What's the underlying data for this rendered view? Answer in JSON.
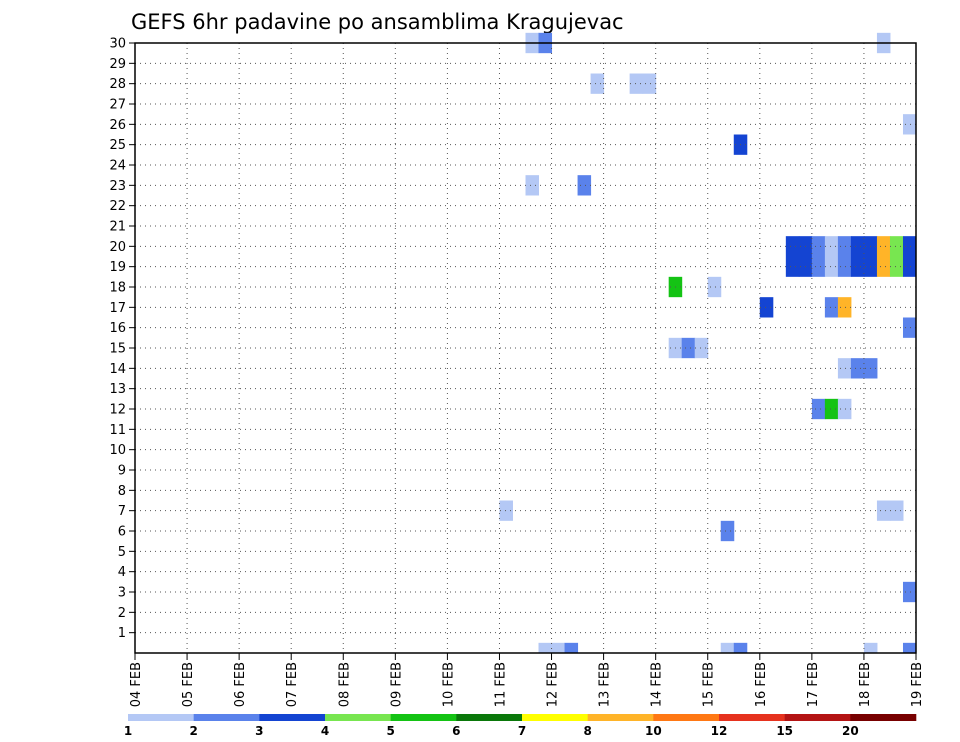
{
  "chart_data": {
    "type": "heatmap",
    "title": "GEFS 6hr padavine po ansamblima Kragujevac",
    "xlabel": "",
    "ylabel": "",
    "x_ticks": [
      "04 FEB",
      "05 FEB",
      "06 FEB",
      "07 FEB",
      "08 FEB",
      "09 FEB",
      "10 FEB",
      "11 FEB",
      "12 FEB",
      "13 FEB",
      "14 FEB",
      "15 FEB",
      "16 FEB",
      "17 FEB",
      "18 FEB",
      "19 FEB"
    ],
    "x_range": [
      0,
      60
    ],
    "y_ticks": [
      1,
      2,
      3,
      4,
      5,
      6,
      7,
      8,
      9,
      10,
      11,
      12,
      13,
      14,
      15,
      16,
      17,
      18,
      19,
      20,
      21,
      22,
      23,
      24,
      25,
      26,
      27,
      28,
      29,
      30
    ],
    "y_range": [
      0,
      30
    ],
    "grid": true,
    "colorbar": {
      "labels": [
        "1",
        "2",
        "3",
        "4",
        "5",
        "6",
        "7",
        "8",
        "10",
        "12",
        "15",
        "20"
      ],
      "colors": [
        "#b4c8f5",
        "#5a82eb",
        "#1444d2",
        "#78e650",
        "#14c314",
        "#0a780a",
        "#ffff00",
        "#ffb428",
        "#ff7814",
        "#e6321e",
        "#b41414",
        "#780000"
      ]
    },
    "cells": [
      {
        "member": 30,
        "step": 30,
        "level": 1
      },
      {
        "member": 30,
        "step": 31,
        "level": 2
      },
      {
        "member": 30,
        "step": 57,
        "level": 1
      },
      {
        "member": 28,
        "step": 35,
        "level": 1
      },
      {
        "member": 28,
        "step": 38,
        "level": 1
      },
      {
        "member": 28,
        "step": 39,
        "level": 1
      },
      {
        "member": 26,
        "step": 59,
        "level": 1
      },
      {
        "member": 25,
        "step": 46,
        "level": 3
      },
      {
        "member": 23,
        "step": 30,
        "level": 1
      },
      {
        "member": 23,
        "step": 34,
        "level": 2
      },
      {
        "member": 20,
        "step": 50,
        "level": 3
      },
      {
        "member": 20,
        "step": 51,
        "level": 3
      },
      {
        "member": 20,
        "step": 52,
        "level": 2
      },
      {
        "member": 20,
        "step": 53,
        "level": 1
      },
      {
        "member": 20,
        "step": 54,
        "level": 2
      },
      {
        "member": 20,
        "step": 55,
        "level": 3
      },
      {
        "member": 20,
        "step": 56,
        "level": 3
      },
      {
        "member": 20,
        "step": 57,
        "level": 8
      },
      {
        "member": 20,
        "step": 58,
        "level": 4
      },
      {
        "member": 20,
        "step": 59,
        "level": 3
      },
      {
        "member": 19,
        "step": 50,
        "level": 3
      },
      {
        "member": 19,
        "step": 51,
        "level": 3
      },
      {
        "member": 19,
        "step": 52,
        "level": 2
      },
      {
        "member": 19,
        "step": 53,
        "level": 1
      },
      {
        "member": 19,
        "step": 54,
        "level": 2
      },
      {
        "member": 19,
        "step": 55,
        "level": 3
      },
      {
        "member": 19,
        "step": 56,
        "level": 3
      },
      {
        "member": 19,
        "step": 57,
        "level": 8
      },
      {
        "member": 19,
        "step": 58,
        "level": 4
      },
      {
        "member": 19,
        "step": 59,
        "level": 3
      },
      {
        "member": 18,
        "step": 41,
        "level": 5
      },
      {
        "member": 18,
        "step": 44,
        "level": 1
      },
      {
        "member": 17,
        "step": 48,
        "level": 3
      },
      {
        "member": 17,
        "step": 53,
        "level": 2
      },
      {
        "member": 17,
        "step": 54,
        "level": 8
      },
      {
        "member": 16,
        "step": 59,
        "level": 2
      },
      {
        "member": 15,
        "step": 41,
        "level": 1
      },
      {
        "member": 15,
        "step": 42,
        "level": 2
      },
      {
        "member": 15,
        "step": 43,
        "level": 1
      },
      {
        "member": 14,
        "step": 54,
        "level": 1
      },
      {
        "member": 14,
        "step": 55,
        "level": 2
      },
      {
        "member": 14,
        "step": 56,
        "level": 2
      },
      {
        "member": 12,
        "step": 52,
        "level": 2
      },
      {
        "member": 12,
        "step": 53,
        "level": 5
      },
      {
        "member": 12,
        "step": 54,
        "level": 1
      },
      {
        "member": 7,
        "step": 28,
        "level": 1
      },
      {
        "member": 7,
        "step": 57,
        "level": 1
      },
      {
        "member": 7,
        "step": 58,
        "level": 1
      },
      {
        "member": 6,
        "step": 45,
        "level": 2
      },
      {
        "member": 3,
        "step": 59,
        "level": 2
      },
      {
        "member": 0,
        "step": 31,
        "level": 1
      },
      {
        "member": 0,
        "step": 32,
        "level": 1
      },
      {
        "member": 0,
        "step": 33,
        "level": 2
      },
      {
        "member": 0,
        "step": 45,
        "level": 1
      },
      {
        "member": 0,
        "step": 46,
        "level": 2
      },
      {
        "member": 0,
        "step": 56,
        "level": 1
      },
      {
        "member": 0,
        "step": 59,
        "level": 2
      }
    ]
  }
}
